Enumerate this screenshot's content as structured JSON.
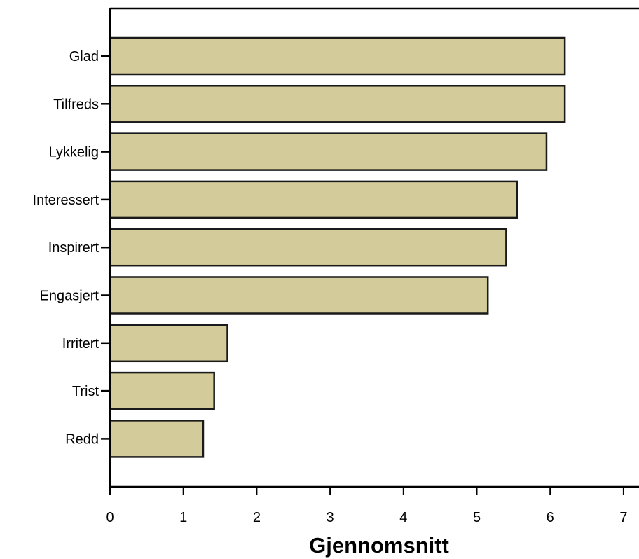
{
  "chart_data": {
    "type": "bar",
    "orientation": "horizontal",
    "categories": [
      "Glad",
      "Tilfreds",
      "Lykkelig",
      "Interessert",
      "Inspirert",
      "Engasjert",
      "Irritert",
      "Trist",
      "Redd"
    ],
    "values": [
      6.2,
      6.2,
      5.95,
      5.55,
      5.4,
      5.15,
      1.6,
      1.42,
      1.27
    ],
    "xlabel": "Gjennomsnitt",
    "ylabel": "",
    "xlim": [
      0,
      7
    ],
    "xticks": [
      "0",
      "1",
      "2",
      "3",
      "4",
      "5",
      "6",
      "7"
    ],
    "grid": false,
    "colors": {
      "bar_fill": "#d4cb9a",
      "bar_stroke": "#1a1a1a",
      "axis": "#000000"
    }
  }
}
